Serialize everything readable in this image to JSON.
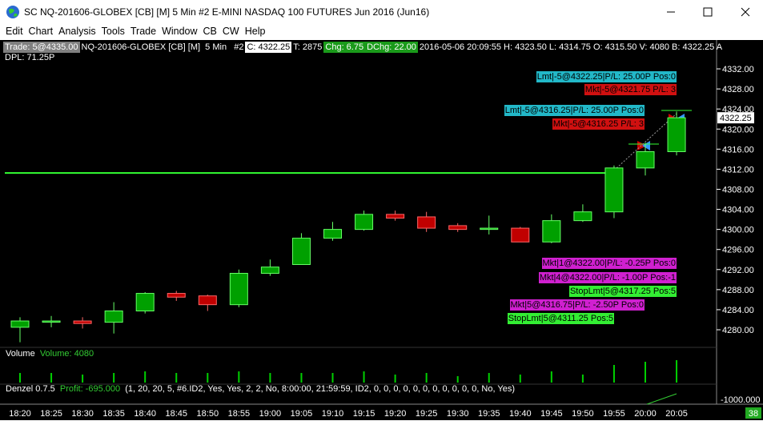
{
  "window": {
    "title": "SC NQ-201606-GLOBEX [CB] [M]  5 Min  #2  E-MINI NASDAQ 100 FUTURES Jun 2016 (Jun16)",
    "menu": [
      "Edit",
      "Chart",
      "Analysis",
      "Tools",
      "Trade",
      "Window",
      "CB",
      "CW",
      "Help"
    ],
    "header": [
      "Trade: 5@4335.00",
      "NQ-201606-GLOBEX [CB] [M]  5 Min   #2",
      "C: 4322.25",
      "T: 2875",
      "Chg: 6.75",
      "DChg: 22.00",
      "2016-05-06 20:09:55 H: 4323.50 L: 4314.75 O: 4315.50 V: 4080 B: 4322.25 A"
    ],
    "dpl": "DPL: 71.25P",
    "orders": [
      "Lmt|-5@4322.25|P/L: 25.00P Pos:0",
      "Mkt|-5@4321.75 P/L: 3",
      "Lmt|-5@4316.25|P/L: 25.00P Pos:0",
      "Mkt|-5@4316.25 P/L: 3",
      "Mkt|1@4322.00|P/L: -0.25P Pos:0",
      "Mkt|4@4322.00|P/L: -1.00P Pos:-1",
      "StopLmt|5@4317.25 Pos:5",
      "Mkt|5@4316.75|P/L: -2.50P Pos:0",
      "StopLmt|5@4311.25 Pos:5"
    ],
    "volume_label": "Volume",
    "volume_value": "Volume: 4080",
    "study_name": "Denzel 0.7.5",
    "study_profit": "Profit: -695.000",
    "study_params": "(1, 20, 20, 5, #6.ID2, Yes, Yes, 2, 2, No, 8:00:00, 21:59:59, ID2, 0, 0, 0, 0, 0, 0, 0, 0, 0, 0, 0, No, Yes)",
    "study_axis": "-1000.000",
    "status": "38"
  },
  "chart_data": {
    "type": "candlestick",
    "categories": [
      "18:20",
      "18:25",
      "18:30",
      "18:35",
      "18:40",
      "18:45",
      "18:50",
      "18:55",
      "19:00",
      "19:05",
      "19:10",
      "19:15",
      "19:20",
      "19:25",
      "19:30",
      "19:35",
      "19:40",
      "19:45",
      "19:50",
      "19:55",
      "20:00",
      "20:05"
    ],
    "open": [
      4280.5,
      4281.5,
      4281.75,
      4281.5,
      4283.75,
      4287.25,
      4286.75,
      4285,
      4291.25,
      4293,
      4298.25,
      4300,
      4303,
      4302.5,
      4300.75,
      4300,
      4300.25,
      4297.5,
      4301.75,
      4303.5,
      4312.25,
      4315.5
    ],
    "high": [
      4282.5,
      4282.75,
      4282.5,
      4285.5,
      4287.5,
      4287.75,
      4287,
      4292,
      4294,
      4299.25,
      4301.5,
      4303.75,
      4303.75,
      4303.5,
      4301.25,
      4302.75,
      4300.5,
      4303,
      4305,
      4312.75,
      4317.25,
      4323.5
    ],
    "low": [
      4277.5,
      4280.5,
      4280.25,
      4279.25,
      4283.25,
      4285.75,
      4283.75,
      4284.5,
      4290.75,
      4293,
      4297.75,
      4299.75,
      4301.75,
      4299.5,
      4299.5,
      4299,
      4297.5,
      4297.25,
      4301.5,
      4302.25,
      4310.75,
      4314.75
    ],
    "close": [
      4281.75,
      4281.75,
      4281.25,
      4283.75,
      4287.25,
      4286.5,
      4285,
      4291.25,
      4292.5,
      4298.25,
      4300,
      4303,
      4302.25,
      4300.25,
      4300,
      4300.25,
      4297.5,
      4301.75,
      4303.5,
      4312.25,
      4315.5,
      4322.25
    ],
    "volume": [
      1750,
      1750,
      1460,
      1750,
      2040,
      1750,
      1750,
      2040,
      1750,
      1750,
      1750,
      2040,
      1460,
      1750,
      1170,
      1750,
      1460,
      2040,
      1460,
      3210,
      3790,
      4080
    ],
    "up_color": "#00a000",
    "down_color": "#c00000",
    "volume_color": "#00d000",
    "ylim": [
      4277.13,
      4337.43
    ],
    "yticks": [
      {
        "value": 4280,
        "label": "4280.00"
      },
      {
        "value": 4284,
        "label": "4284.00"
      },
      {
        "value": 4288,
        "label": "4288.00"
      },
      {
        "value": 4292,
        "label": "4292.00"
      },
      {
        "value": 4296,
        "label": "4296.00"
      },
      {
        "value": 4300,
        "label": "4300.00"
      },
      {
        "value": 4304,
        "label": "4304.00"
      },
      {
        "value": 4308,
        "label": "4308.00"
      },
      {
        "value": 4312,
        "label": "4312.00"
      },
      {
        "value": 4316,
        "label": "4316.00"
      },
      {
        "value": 4320,
        "label": "4320.00"
      },
      {
        "value": 4324,
        "label": "4324.00"
      },
      {
        "value": 4328,
        "label": "4328.00"
      },
      {
        "value": 4332,
        "label": "4332.00"
      }
    ],
    "stop_line": 4311.25,
    "stop_color": "#33ff33"
  }
}
